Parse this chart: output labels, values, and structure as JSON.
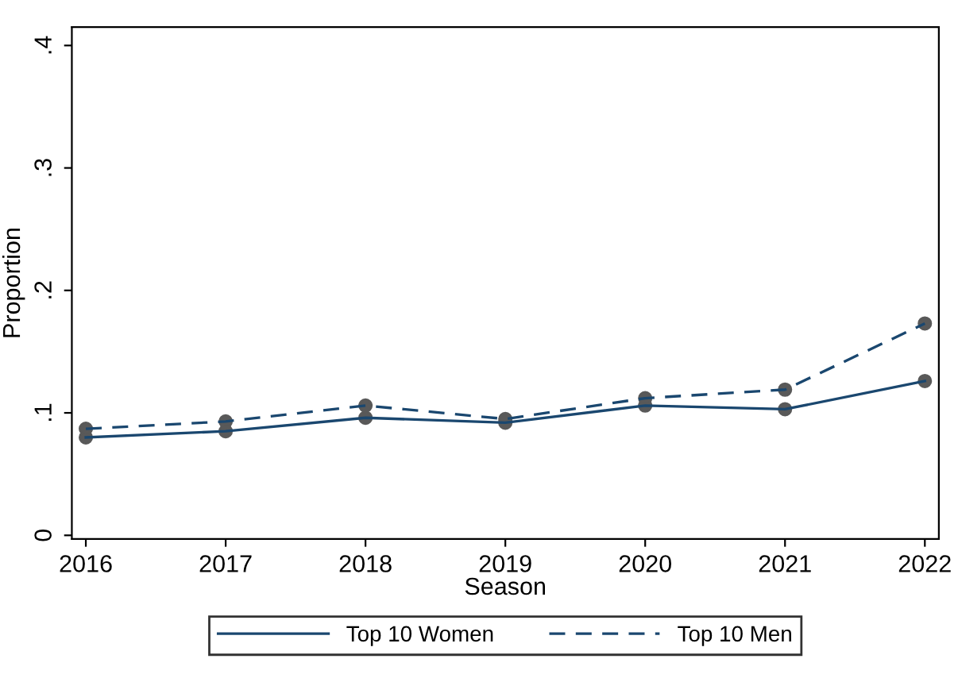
{
  "chart_data": {
    "type": "line",
    "xlabel": "Season",
    "ylabel": "Proportion",
    "x": [
      2016,
      2017,
      2018,
      2019,
      2020,
      2021,
      2022
    ],
    "series": [
      {
        "name": "Top 10 Women",
        "color": "#1a476f",
        "line_style": "solid",
        "values": [
          0.08,
          0.085,
          0.096,
          0.092,
          0.106,
          0.103,
          0.126
        ]
      },
      {
        "name": "Top 10 Men",
        "color": "#1a476f",
        "line_style": "dashed",
        "values": [
          0.087,
          0.093,
          0.106,
          0.095,
          0.112,
          0.119,
          0.173
        ]
      }
    ],
    "xlim": [
      2015.9,
      2022.1
    ],
    "xticks": [
      2016,
      2017,
      2018,
      2019,
      2020,
      2021,
      2022
    ],
    "ylim": [
      -0.003,
      0.415
    ],
    "yticks": [
      {
        "value": 0,
        "label": "0"
      },
      {
        "value": 0.1,
        "label": ".1"
      },
      {
        "value": 0.2,
        "label": ".2"
      },
      {
        "value": 0.3,
        "label": ".3"
      },
      {
        "value": 0.4,
        "label": ".4"
      }
    ],
    "marker": "circle",
    "grid": false,
    "legend": "bottom"
  }
}
